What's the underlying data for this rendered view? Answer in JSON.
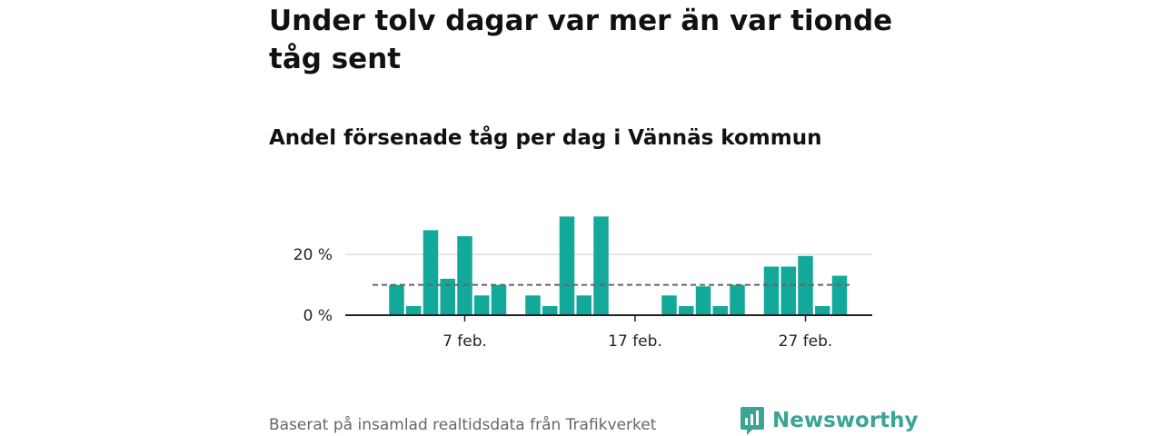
{
  "header": {
    "title": "Under tolv dagar var mer än var tionde tåg sent",
    "subtitle": "Andel försenade tåg per dag i Vännäs kommun"
  },
  "footer": {
    "source": "Baserat på insamlad realtidsdata från Trafikverket",
    "brand": "Newsworthy"
  },
  "colors": {
    "bar": "#12a89a",
    "reference_line": "#666666",
    "grid": "#dddddd",
    "axis": "#222222",
    "brand": "#3aa595"
  },
  "chart_data": {
    "type": "bar",
    "xlabel": "",
    "ylabel": "",
    "x_unit": "day in February",
    "x": [
      3,
      4,
      5,
      6,
      7,
      8,
      9,
      10,
      11,
      12,
      13,
      14,
      15,
      16,
      17,
      18,
      19,
      20,
      21,
      22,
      23,
      24,
      25,
      26,
      27,
      28,
      29
    ],
    "values": [
      10,
      3,
      28,
      12,
      26,
      6.5,
      10,
      0,
      6.5,
      3,
      32.5,
      6.5,
      32.5,
      0,
      0,
      0,
      6.5,
      3,
      9.5,
      3,
      10,
      0,
      16,
      16,
      19.5,
      3,
      13
    ],
    "ylim": [
      0,
      35
    ],
    "yticks": [
      0,
      20
    ],
    "ytick_labels": [
      "0 %",
      "20 %"
    ],
    "xticks": [
      7,
      17,
      27
    ],
    "xtick_labels": [
      "7 feb.",
      "17 feb.",
      "27 feb."
    ],
    "reference_value": 10,
    "grid": "horizontal"
  }
}
